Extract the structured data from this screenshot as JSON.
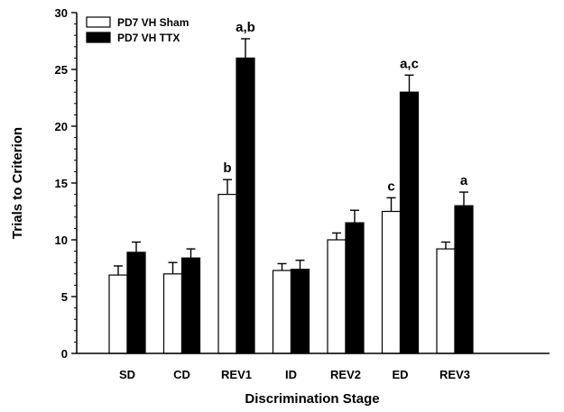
{
  "chart_data": {
    "type": "bar",
    "xlabel": "Discrimination Stage",
    "ylabel": "Trials to Criterion",
    "ylim": [
      0,
      30
    ],
    "yticks": [
      0,
      5,
      10,
      15,
      20,
      25,
      30
    ],
    "categories": [
      "SD",
      "CD",
      "REV1",
      "ID",
      "REV2",
      "ED",
      "REV3"
    ],
    "series": [
      {
        "name": "PD7 VH Sham",
        "color": "#ffffff",
        "values": [
          6.9,
          7.0,
          14.0,
          7.3,
          10.0,
          12.5,
          9.2
        ],
        "errors": [
          0.8,
          1.0,
          1.3,
          0.6,
          0.6,
          1.2,
          0.6
        ],
        "annotations": [
          "",
          "",
          "b",
          "",
          "",
          "c",
          ""
        ]
      },
      {
        "name": "PD7 VH TTX",
        "color": "#000000",
        "values": [
          8.9,
          8.4,
          26.0,
          7.4,
          11.5,
          23.0,
          13.0
        ],
        "errors": [
          0.9,
          0.8,
          1.7,
          0.8,
          1.1,
          1.5,
          1.2
        ],
        "annotations": [
          "",
          "",
          "a,b",
          "",
          "",
          "a,c",
          "a"
        ]
      }
    ],
    "legend_position": "top-left"
  }
}
